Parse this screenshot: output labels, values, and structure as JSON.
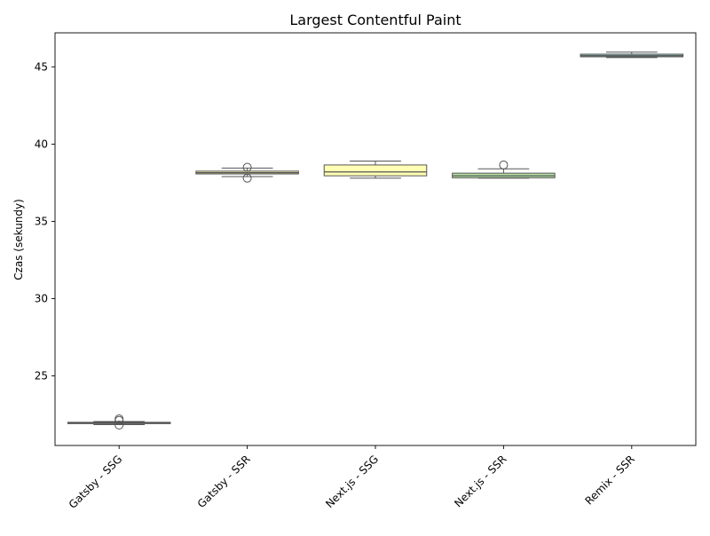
{
  "chart_data": {
    "type": "box",
    "title": "Largest Contentful Paint",
    "xlabel": "",
    "ylabel": "Czas (sekundy)",
    "ylim": [
      20.5,
      47.2
    ],
    "yticks": [
      25,
      30,
      35,
      40,
      45
    ],
    "grid": false,
    "categories": [
      "Gatsby - SSG",
      "Gatsby - SSR",
      "Next.js - SSG",
      "Next.js - SSR",
      "Remix - SSR"
    ],
    "boxes": [
      {
        "category": "Gatsby - SSG",
        "whisker_low": 21.85,
        "q1": 21.93,
        "median": 21.97,
        "q3": 22.0,
        "whisker_high": 22.05,
        "outliers": [
          22.22,
          22.12,
          21.82
        ],
        "color": "#8dd3c7"
      },
      {
        "category": "Gatsby - SSR",
        "whisker_low": 37.9,
        "q1": 38.07,
        "median": 38.15,
        "q3": 38.25,
        "whisker_high": 38.45,
        "outliers": [
          38.5,
          37.8
        ],
        "color": "#f5f0a6"
      },
      {
        "category": "Next.js - SSG",
        "whisker_low": 37.8,
        "q1": 37.95,
        "median": 38.2,
        "q3": 38.65,
        "whisker_high": 38.9,
        "outliers": [],
        "color": "#ffffb3"
      },
      {
        "category": "Next.js - SSR",
        "whisker_low": 37.8,
        "q1": 37.82,
        "median": 37.95,
        "q3": 38.12,
        "whisker_high": 38.4,
        "outliers": [
          38.65
        ],
        "color": "#b7e3a6"
      },
      {
        "category": "Remix - SSR",
        "whisker_low": 45.6,
        "q1": 45.65,
        "median": 45.72,
        "q3": 45.82,
        "whisker_high": 45.95,
        "outliers": [],
        "color": "#8dd3c7"
      }
    ]
  }
}
